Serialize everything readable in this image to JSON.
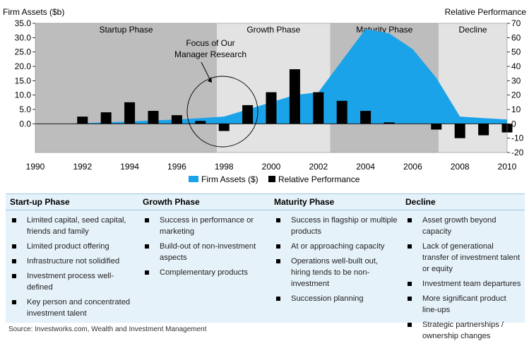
{
  "chart_data": {
    "type": "bar+area",
    "left_axis_title": "Firm Assets ($b)",
    "right_axis_title": "Relative Performance",
    "left_ticks": [
      "35.0",
      "30.0",
      "25.0",
      "20.0",
      "15.0",
      "10.0",
      "5.0",
      "0.0"
    ],
    "right_ticks": [
      "70",
      "60",
      "50",
      "40",
      "30",
      "20",
      "10",
      "0",
      "-10",
      "-20"
    ],
    "left_ylim": [
      -10,
      35
    ],
    "right_ylim": [
      -20,
      70
    ],
    "x_ticks": [
      "1990",
      "1992",
      "1994",
      "1996",
      "1998",
      "2000",
      "2002",
      "2004",
      "2006",
      "2008",
      "2010"
    ],
    "x_range": [
      1990,
      2010
    ],
    "phases": [
      {
        "label": "Startup Phase",
        "from": 1990,
        "to": 1997.7,
        "color": "#bdbdbd"
      },
      {
        "label": "Growth Phase",
        "from": 1997.7,
        "to": 2002.5,
        "color": "#e3e3e3"
      },
      {
        "label": "Maturity Phase",
        "from": 2002.5,
        "to": 2007.1,
        "color": "#bdbdbd"
      },
      {
        "label": "Decline",
        "from": 2007.1,
        "to": 2010,
        "color": "#e3e3e3"
      }
    ],
    "annotation": [
      "Focus of Our",
      "Manager Research"
    ],
    "series": [
      {
        "name": "Firm Assets ($)",
        "kind": "area",
        "axis": "left",
        "color": "#1aa3e8",
        "x": [
          1990,
          1991,
          1992,
          1993,
          1994,
          1995,
          1996,
          1997,
          1998,
          1999,
          2000,
          2001,
          2002,
          2003,
          2004,
          2005,
          2006,
          2007,
          2008,
          2009,
          2010
        ],
        "values": [
          0,
          0,
          0.2,
          0.5,
          0.8,
          1.2,
          1.5,
          2.0,
          2.5,
          5.0,
          7.5,
          10.0,
          11.0,
          22.0,
          33.0,
          31.5,
          26.0,
          16.0,
          2.5,
          2.0,
          1.5
        ]
      },
      {
        "name": "Relative Performance",
        "kind": "bar",
        "axis": "right",
        "color": "#000000",
        "x": [
          1992,
          1993,
          1994,
          1995,
          1996,
          1997,
          1998,
          1999,
          2000,
          2001,
          2002,
          2003,
          2004,
          2005,
          2007,
          2008,
          2009,
          2010
        ],
        "values": [
          5,
          8,
          15,
          9,
          6,
          2,
          -5,
          13,
          22,
          38,
          22,
          16,
          9,
          1,
          -4,
          -10,
          -8,
          -6
        ]
      }
    ],
    "legend": [
      {
        "label": "Firm Assets ($)",
        "color": "#1aa3e8"
      },
      {
        "label": "Relative Performance",
        "color": "#000000"
      }
    ],
    "legend_position": "bottom"
  },
  "phases_table": [
    {
      "heading": "Start-up Phase",
      "items": [
        "Limited capital, seed capital, friends and family",
        "Limited product offering",
        "Infrastructure not solidified",
        "Investment process well-defined",
        "Key person and concentrated investment talent"
      ]
    },
    {
      "heading": "Growth Phase",
      "items": [
        "Success in performance or marketing",
        "Build-out of non-investment aspects",
        "Complementary products"
      ]
    },
    {
      "heading": "Maturity Phase",
      "items": [
        "Success in flagship or multiple products",
        "At or approaching capacity",
        "Operations well-built out, hiring tends to be non-investment",
        "Succession planning"
      ]
    },
    {
      "heading": "Decline",
      "items": [
        "Asset growth beyond capacity",
        "Lack of generational transfer of investment talent or equity",
        "Investment team departures",
        "More significant product line-ups",
        "Strategic partnerships / ownership changes"
      ]
    }
  ],
  "source": "Source: Investworks.com, Wealth and Investment Management"
}
